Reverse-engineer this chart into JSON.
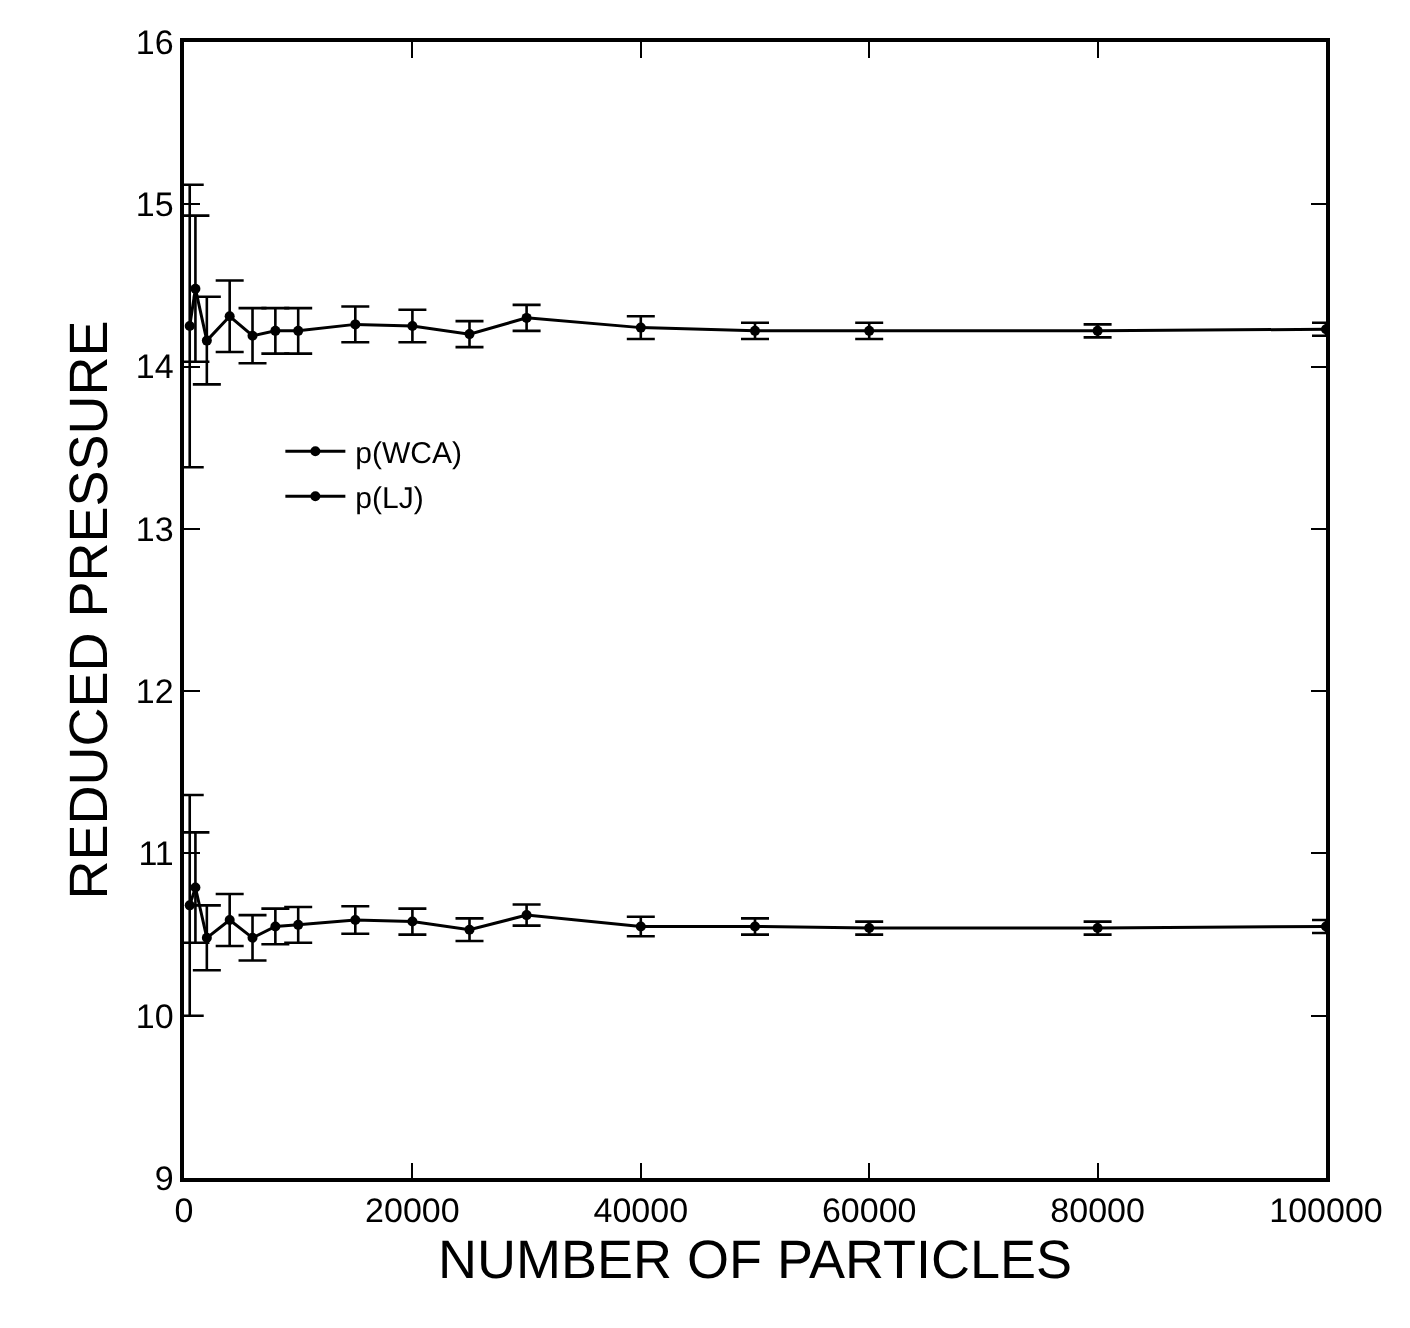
{
  "chart_data": {
    "type": "line",
    "xlabel": "NUMBER OF PARTICLES",
    "ylabel": "REDUCED PRESSURE",
    "x": [
      500,
      1000,
      2000,
      4000,
      6000,
      8000,
      10000,
      15000,
      20000,
      25000,
      30000,
      40000,
      50000,
      60000,
      80000,
      100000
    ],
    "series": [
      {
        "name": "p(WCA)",
        "color": "#000000",
        "values": [
          14.25,
          14.48,
          14.16,
          14.31,
          14.19,
          14.22,
          14.22,
          14.26,
          14.25,
          14.2,
          14.3,
          14.24,
          14.22,
          14.22,
          14.22,
          14.23
        ],
        "errors": [
          0.87,
          0.45,
          0.27,
          0.22,
          0.17,
          0.14,
          0.14,
          0.11,
          0.1,
          0.08,
          0.08,
          0.07,
          0.05,
          0.05,
          0.04,
          0.04
        ]
      },
      {
        "name": "p(LJ)",
        "color": "#000000",
        "values": [
          10.68,
          10.79,
          10.48,
          10.59,
          10.48,
          10.55,
          10.56,
          10.59,
          10.58,
          10.53,
          10.62,
          10.55,
          10.55,
          10.54,
          10.54,
          10.55
        ],
        "errors": [
          0.68,
          0.34,
          0.2,
          0.16,
          0.14,
          0.11,
          0.11,
          0.085,
          0.08,
          0.07,
          0.065,
          0.06,
          0.05,
          0.04,
          0.04,
          0.04
        ]
      }
    ],
    "xlim": [
      0,
      100000
    ],
    "xticks": [
      0,
      20000,
      40000,
      60000,
      80000,
      100000
    ],
    "ylim": [
      9,
      16
    ],
    "yticks": [
      9,
      10,
      11,
      12,
      13,
      14,
      15,
      16
    ],
    "grid": false,
    "legend": "left",
    "marker": "circle",
    "line_style": "solid"
  }
}
